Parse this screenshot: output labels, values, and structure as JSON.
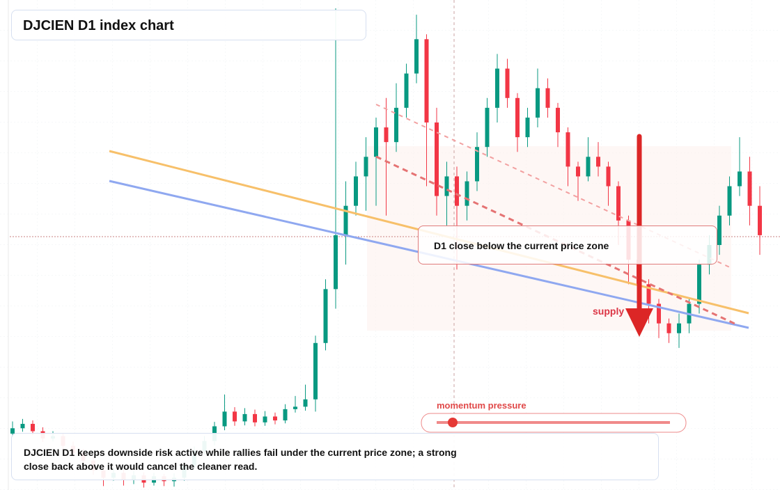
{
  "chart_data": {
    "type": "candlestick",
    "title": "DJCIEN D1 index chart",
    "ylim": [
      0,
      100
    ],
    "up_color": "#089981",
    "down_color": "#f23645",
    "ohlc": [
      [
        11.5,
        14,
        10.8,
        12.6
      ],
      [
        12.6,
        14.5,
        11.9,
        13.5
      ],
      [
        13.5,
        14.2,
        11.2,
        12
      ],
      [
        12,
        12.8,
        9.8,
        10.5
      ],
      [
        10.5,
        12,
        9.9,
        11
      ],
      [
        11,
        11.6,
        8.2,
        9
      ],
      [
        9,
        9.9,
        6.8,
        7.5
      ],
      [
        7.5,
        8.4,
        5.2,
        6
      ],
      [
        6,
        6.9,
        3.1,
        4
      ],
      [
        4,
        4.8,
        0.8,
        2.5
      ],
      [
        2.5,
        4.6,
        1.9,
        3.5
      ],
      [
        3.5,
        4.1,
        0.9,
        2
      ],
      [
        2,
        3.9,
        1.2,
        3
      ],
      [
        3,
        3.6,
        0.5,
        1.5
      ],
      [
        1.5,
        3.5,
        0.9,
        2.8
      ],
      [
        2.8,
        3.3,
        0.8,
        1.8
      ],
      [
        1.8,
        3.4,
        0.7,
        2.5
      ],
      [
        2.5,
        5.8,
        1.9,
        5
      ],
      [
        5,
        8.9,
        4.4,
        8
      ],
      [
        8,
        11,
        7.2,
        10
      ],
      [
        10,
        13.9,
        9.1,
        13
      ],
      [
        13,
        19.5,
        12.2,
        16
      ],
      [
        16,
        16.9,
        13.1,
        14
      ],
      [
        14,
        16.7,
        13.2,
        15.5
      ],
      [
        15.5,
        16.4,
        13,
        13.8
      ],
      [
        13.8,
        16.1,
        13.1,
        15
      ],
      [
        15,
        15.8,
        13.4,
        14.2
      ],
      [
        14.2,
        17.5,
        13.6,
        16.5
      ],
      [
        16.5,
        19.2,
        15.8,
        17
      ],
      [
        17,
        21.5,
        16.2,
        18.5
      ],
      [
        18.5,
        31.5,
        16,
        30
      ],
      [
        30,
        43,
        28.5,
        41
      ],
      [
        41,
        98.3,
        37,
        52
      ],
      [
        52,
        63,
        46,
        58
      ],
      [
        58,
        67,
        56,
        64
      ],
      [
        64,
        72,
        57,
        68
      ],
      [
        68,
        76,
        58,
        74
      ],
      [
        74,
        80,
        56,
        71
      ],
      [
        71,
        83,
        69,
        78
      ],
      [
        78,
        87,
        76,
        85
      ],
      [
        85,
        97,
        83,
        92
      ],
      [
        92,
        93,
        62,
        75
      ],
      [
        75,
        78,
        56,
        60
      ],
      [
        60,
        67,
        54,
        64
      ],
      [
        64,
        66,
        45,
        58
      ],
      [
        58,
        65,
        55,
        63
      ],
      [
        63,
        73,
        61,
        70
      ],
      [
        70,
        80,
        68,
        78
      ],
      [
        78,
        89,
        75,
        86
      ],
      [
        86,
        88,
        78,
        80
      ],
      [
        80,
        81,
        69,
        72
      ],
      [
        72,
        78,
        70,
        76
      ],
      [
        76,
        86,
        74,
        82
      ],
      [
        82,
        84,
        76,
        78
      ],
      [
        78,
        79,
        70,
        73
      ],
      [
        73,
        74,
        62,
        66
      ],
      [
        66,
        67,
        59,
        64
      ],
      [
        64,
        72,
        63,
        68
      ],
      [
        68,
        71,
        64,
        66
      ],
      [
        66,
        67,
        58,
        62
      ],
      [
        62,
        63,
        50,
        55
      ],
      [
        55,
        56,
        42,
        47
      ],
      [
        47,
        48,
        37,
        42
      ],
      [
        42,
        43,
        34,
        38
      ],
      [
        38,
        39,
        31,
        34
      ],
      [
        34,
        35,
        30,
        32
      ],
      [
        32,
        36,
        29,
        34
      ],
      [
        34,
        39,
        32,
        38
      ],
      [
        38,
        47,
        36,
        46
      ],
      [
        46,
        52,
        44,
        50
      ],
      [
        50,
        58,
        48,
        56
      ],
      [
        56,
        64,
        54,
        62
      ],
      [
        62,
        72,
        60,
        65
      ],
      [
        65,
        68,
        54,
        58
      ],
      [
        58,
        62,
        48,
        52
      ]
    ],
    "annotations": {
      "callout": "D1 close below the current price zone",
      "supply_label": "supply",
      "momentum_label": "momentum pressure",
      "note": "DJCIEN D1 keeps downside risk active while rallies fail under the current price zone; a strong close back above it would cancel the cleaner read."
    }
  }
}
